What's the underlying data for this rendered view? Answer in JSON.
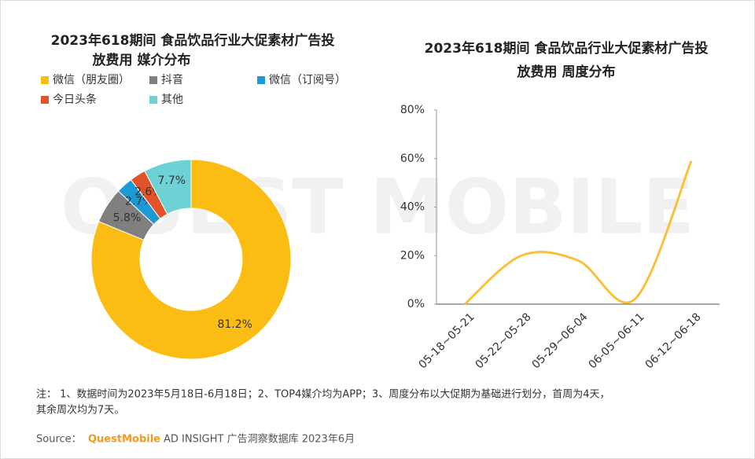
{
  "watermark": "QUEST MOBILE",
  "chart_data": [
    {
      "type": "pie",
      "title": [
        "2023年618期间 食品饮品行业大促素材广告投",
        "放费用 媒介分布"
      ],
      "categories": [
        "微信（朋友圈）",
        "抖音",
        "微信（订阅号）",
        "今日头条",
        "其他"
      ],
      "values": [
        81.2,
        5.8,
        2.7,
        2.6,
        7.7
      ],
      "value_labels": [
        "81.2%",
        "5.8%",
        "2.7%",
        "2.6%",
        "7.7%"
      ],
      "colors": [
        "#FBBD13",
        "#7F7F7F",
        "#1B9AD6",
        "#E2522B",
        "#6ED1D4"
      ]
    },
    {
      "type": "line",
      "title": [
        "2023年618期间 食品饮品行业大促素材广告投",
        "放费用 周度分布"
      ],
      "categories": [
        "05-18~05-21",
        "05-22~05-28",
        "05-29~06-04",
        "06-05~06-11",
        "06-12~06-18"
      ],
      "series": [
        {
          "color": "#F9C13A",
          "values": [
            0,
            20,
            18,
            2,
            59
          ]
        }
      ],
      "ylim": [
        0,
        80
      ],
      "yticks": [
        {
          "value": 0,
          "label": "0%"
        },
        {
          "value": 20,
          "label": "20%"
        },
        {
          "value": 40,
          "label": "40%"
        },
        {
          "value": 60,
          "label": "60%"
        },
        {
          "value": 80,
          "label": "80%"
        }
      ]
    }
  ],
  "footnote": [
    "注： 1、数据时间为2023年5月18日-6月18日；2、TOP4媒介均为APP；3、周度分布以大促期为基础进行划分，首周为4天，",
    "其余周次均为7天。"
  ],
  "source": {
    "label": "Source：",
    "brand": "QuestMobile",
    "text": "AD INSIGHT 广告洞察数据库 2023年6月"
  }
}
